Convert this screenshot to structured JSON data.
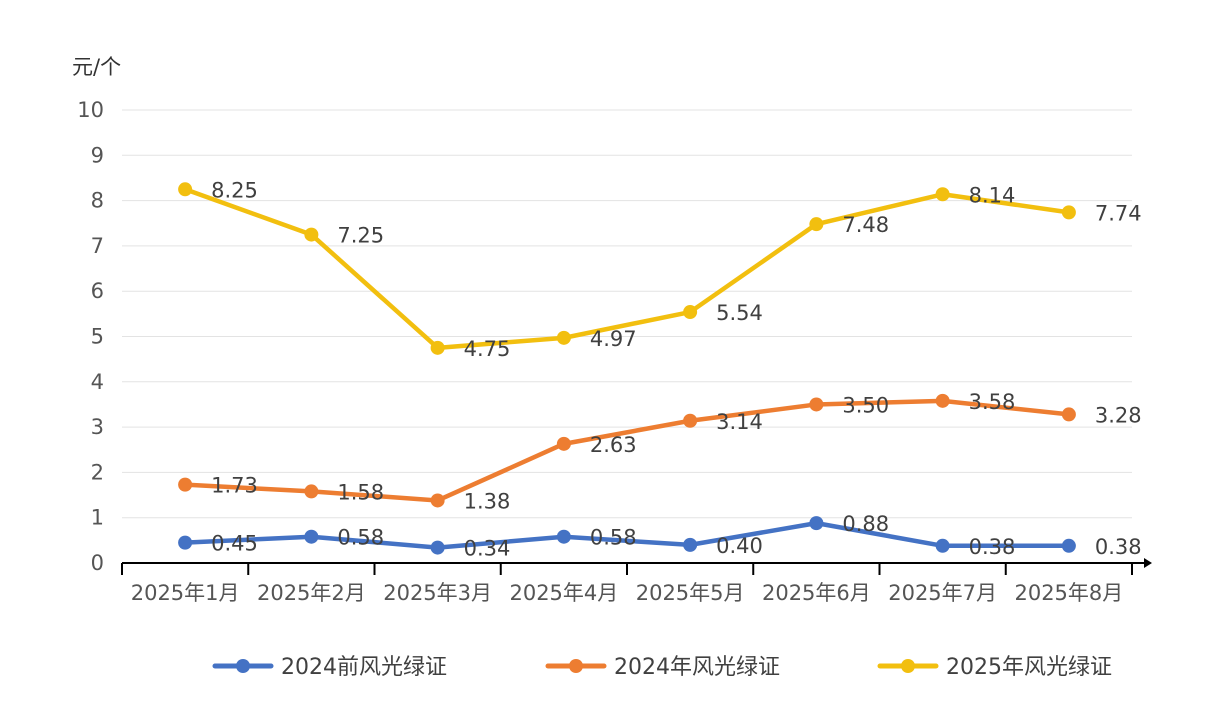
{
  "chart_data": {
    "type": "line",
    "title": "",
    "ylabel": "元/个",
    "xlabel": "",
    "ylim": [
      0,
      10
    ],
    "yticks": [
      "0",
      "1",
      "2",
      "3",
      "4",
      "5",
      "6",
      "7",
      "8",
      "9",
      "10"
    ],
    "grid": true,
    "legend_position": "bottom",
    "categories": [
      "2025年1月",
      "2025年2月",
      "2025年3月",
      "2025年4月",
      "2025年5月",
      "2025年6月",
      "2025年7月",
      "2025年8月"
    ],
    "series": [
      {
        "name": "2024前风光绿证",
        "color": "#4472C4",
        "values": [
          0.45,
          0.58,
          0.34,
          0.58,
          0.4,
          0.88,
          0.38,
          0.38
        ],
        "labels": [
          "0.45",
          "0.58",
          "0.34",
          "0.58",
          "0.40",
          "0.88",
          "0.38",
          "0.38"
        ]
      },
      {
        "name": "2024年风光绿证",
        "color": "#ED7D31",
        "values": [
          1.73,
          1.58,
          1.38,
          2.63,
          3.14,
          3.5,
          3.58,
          3.28
        ],
        "labels": [
          "1.73",
          "1.58",
          "1.38",
          "2.63",
          "3.14",
          "3.50",
          "3.58",
          "3.28"
        ]
      },
      {
        "name": "2025年风光绿证",
        "color": "#F2BF0F",
        "values": [
          8.25,
          7.25,
          4.75,
          4.97,
          5.54,
          7.48,
          8.14,
          7.74
        ],
        "labels": [
          "8.25",
          "7.25",
          "4.75",
          "4.97",
          "5.54",
          "7.48",
          "8.14",
          "7.74"
        ]
      }
    ]
  }
}
